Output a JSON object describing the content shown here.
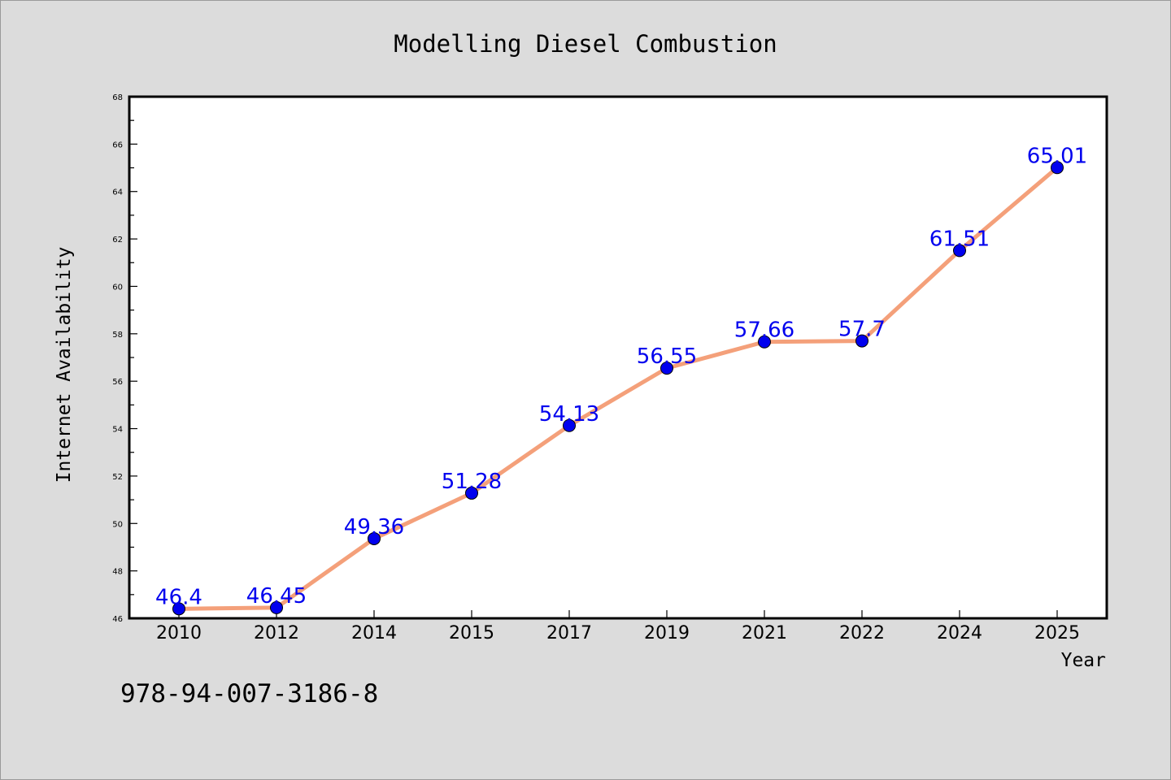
{
  "chart_data": {
    "type": "line",
    "title": "Modelling Diesel Combustion",
    "xlabel": "Year",
    "ylabel": "Internet Availability",
    "categories": [
      "2010",
      "2012",
      "2014",
      "2015",
      "2017",
      "2019",
      "2021",
      "2022",
      "2024",
      "2025"
    ],
    "series": [
      {
        "values": [
          46.4,
          46.45,
          49.36,
          51.28,
          54.13,
          56.55,
          57.66,
          57.7,
          61.51,
          65.01
        ],
        "labels": [
          "46.4",
          "46.45",
          "49.36",
          "51.28",
          "54.13",
          "56.55",
          "57.66",
          "57.7",
          "61.51",
          "65.01"
        ],
        "line_color": "#f4a07a",
        "marker_color": "#0000ee",
        "label_color": "#0000ee"
      }
    ],
    "ylim": [
      46,
      68
    ],
    "yticks_major": [
      46,
      48,
      50,
      52,
      54,
      56,
      58,
      60,
      62,
      64,
      66,
      68
    ],
    "yticks_minor_step": 1,
    "grid": false,
    "legend": "none"
  },
  "footer_id": "978-94-007-3186-8"
}
